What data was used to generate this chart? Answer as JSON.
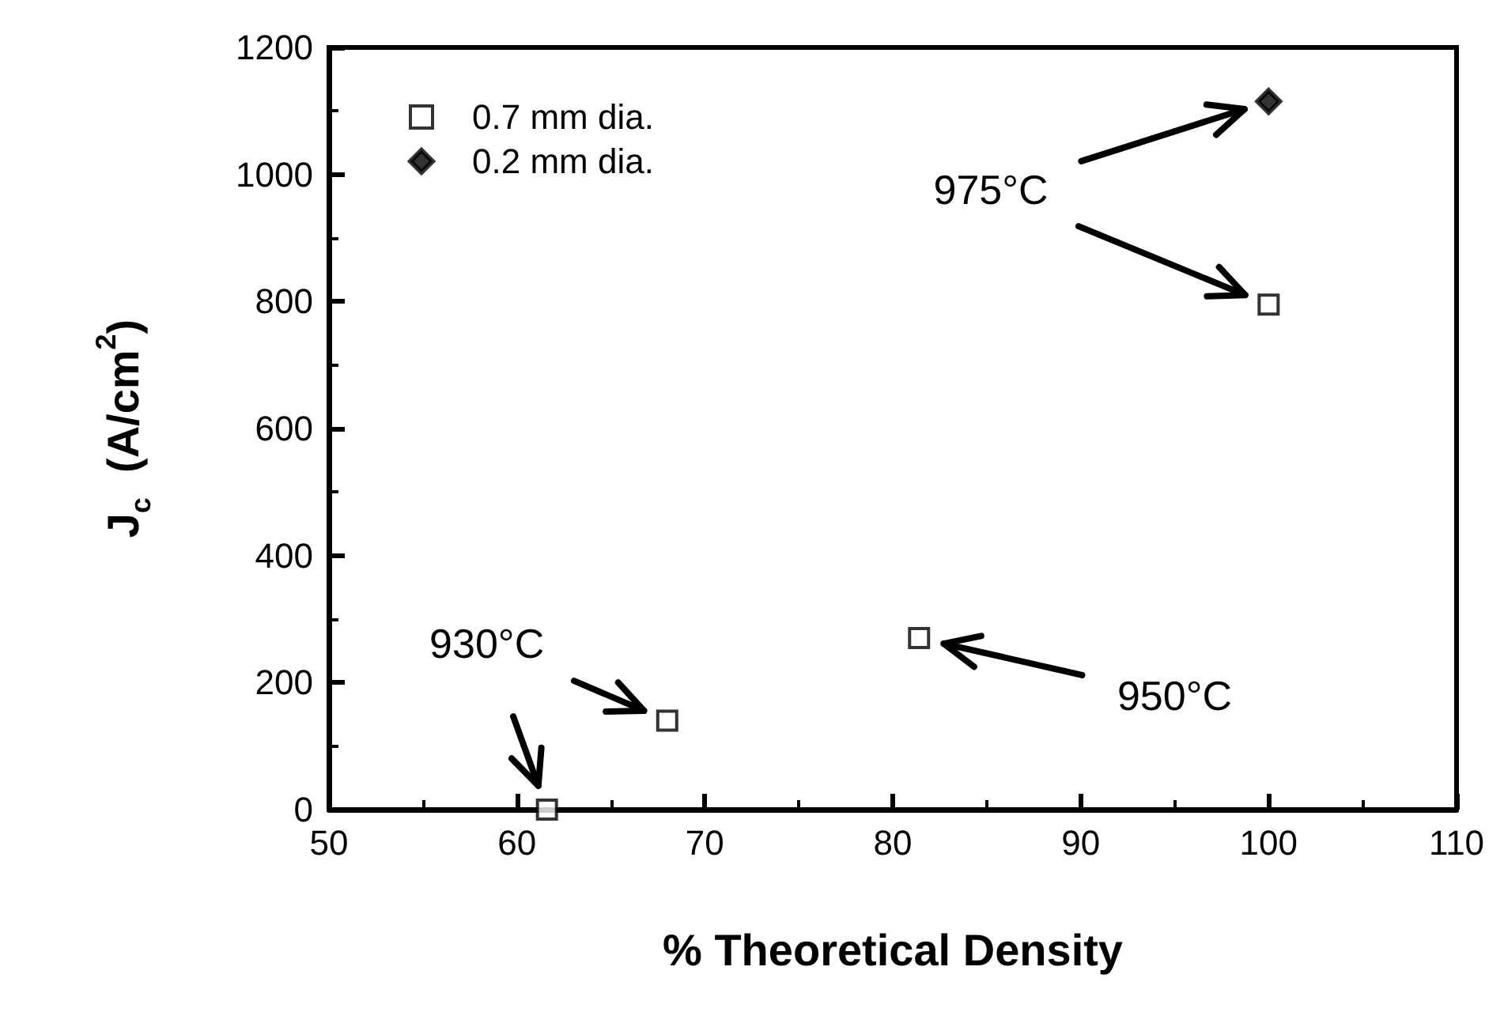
{
  "chart_data": {
    "type": "scatter",
    "xlabel": "% Theoretical Density",
    "ylabel": "J$_{c}$  (A/cm$^{2}$)",
    "series": [
      {
        "name": "0.7 mm dia.",
        "color": "#000000",
        "marker": "square",
        "x": [
          61.6,
          68,
          81.4,
          100
        ],
        "values": [
          0,
          140,
          270,
          795
        ]
      },
      {
        "name": "0.2 mm dia.",
        "color": "#000000",
        "marker": "diamond",
        "x": [
          100
        ],
        "values": [
          1115
        ]
      }
    ],
    "xlim": [
      50,
      110
    ],
    "xticks": [
      50,
      60,
      70,
      80,
      90,
      100,
      110
    ],
    "ylim": [
      0,
      1200
    ],
    "yticks": [
      0,
      200,
      400,
      600,
      800,
      1000,
      1200
    ],
    "grid": false,
    "legend": "top left",
    "annotations": [
      "930°C",
      "975°C",
      "950°C"
    ]
  }
}
